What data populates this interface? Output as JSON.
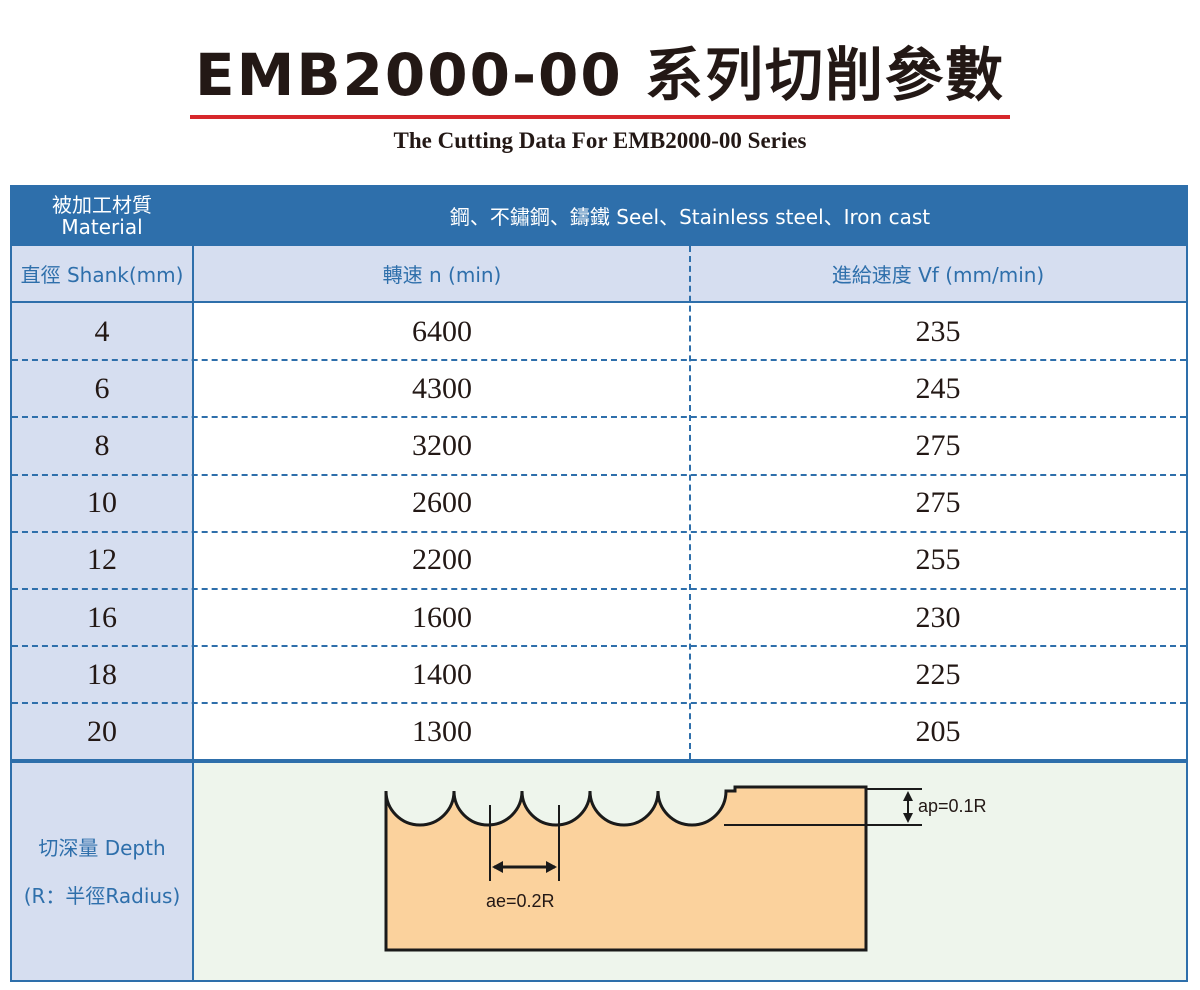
{
  "title": "EMB2000-00 系列切削參數",
  "subtitle": "The Cutting Data For EMB2000-00 Series",
  "table": {
    "material_label_zh": "被加工材質",
    "material_label_en": "Material",
    "material_value": "鋼、不鏽鋼、鑄鐵 Seel、Stainless  steel、Iron cast",
    "shank_label": "直徑 Shank(mm)",
    "speed_label": "轉速 n (min)",
    "feed_label": "進給速度 Vf (mm/min)",
    "rows": [
      {
        "shank": "4",
        "speed": "6400",
        "feed": "235"
      },
      {
        "shank": "6",
        "speed": "4300",
        "feed": "245"
      },
      {
        "shank": "8",
        "speed": "3200",
        "feed": "275"
      },
      {
        "shank": "10",
        "speed": "2600",
        "feed": "275"
      },
      {
        "shank": "12",
        "speed": "2200",
        "feed": "255"
      },
      {
        "shank": "16",
        "speed": "1600",
        "feed": "230"
      },
      {
        "shank": "18",
        "speed": "1400",
        "feed": "225"
      },
      {
        "shank": "20",
        "speed": "1300",
        "feed": "205"
      }
    ],
    "depth_label_1": "切深量  Depth",
    "depth_label_2": "(R：半徑Radius)"
  },
  "diagram": {
    "ap_label": "ap=0.1R",
    "ae_label": "ae=0.2R",
    "fill_color": "#fbd29d"
  },
  "colors": {
    "header_blue": "#2e6fab",
    "light_blue": "#d6def0",
    "title_rule_red": "#d7272b"
  }
}
